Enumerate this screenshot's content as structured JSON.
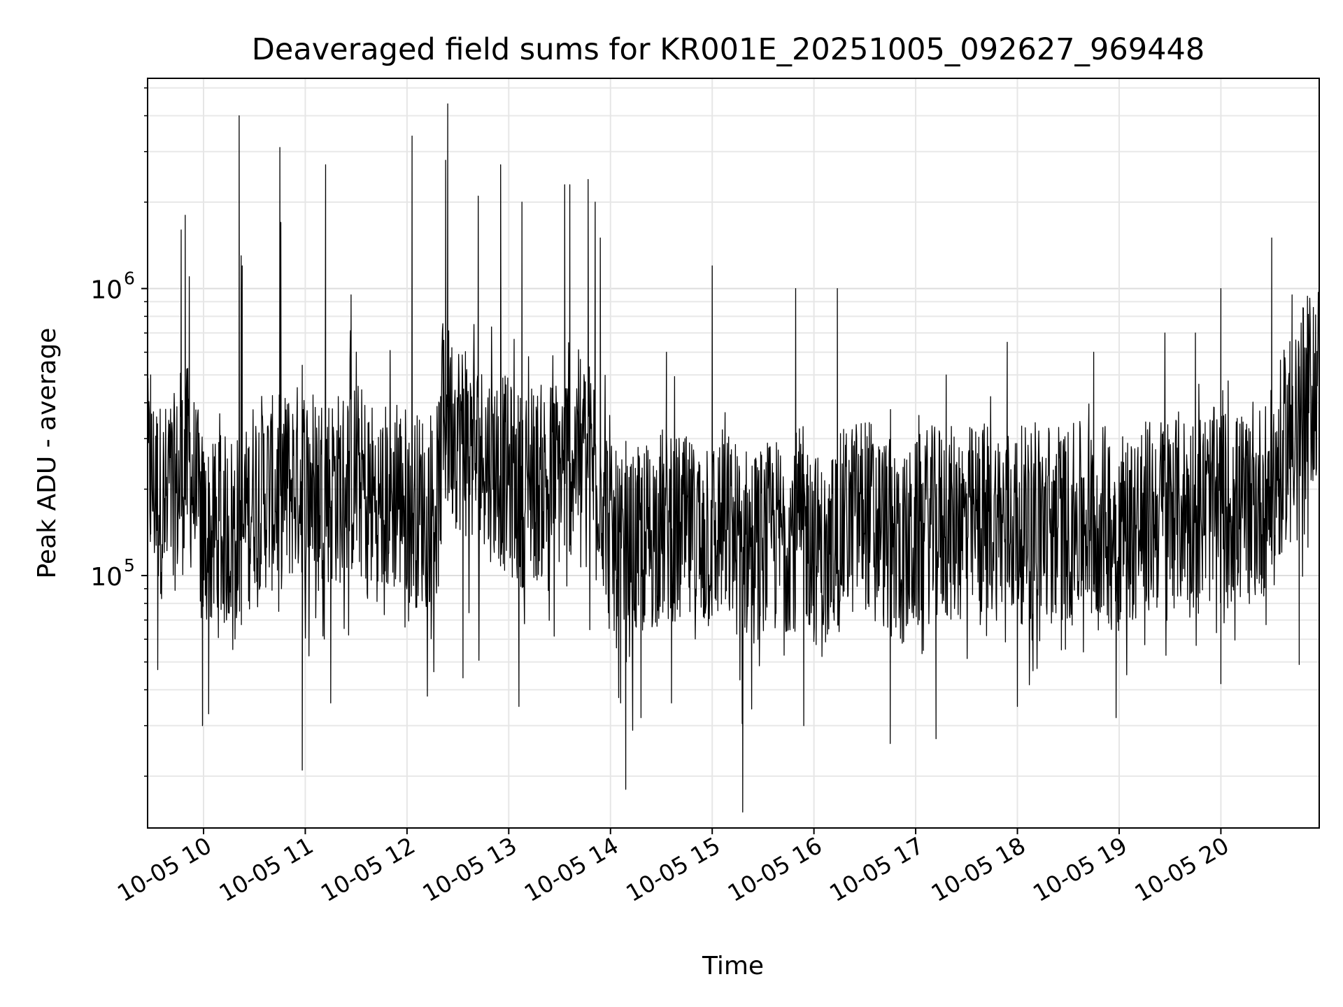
{
  "chart_data": {
    "type": "line",
    "title": "Deaveraged field sums for KR001E_20251005_092627_969448",
    "xlabel": "Time",
    "ylabel": "Peak ADU - average",
    "x_ticks": [
      "10-05 10",
      "10-05 11",
      "10-05 12",
      "10-05 13",
      "10-05 14",
      "10-05 15",
      "10-05 16",
      "10-05 17",
      "10-05 18",
      "10-05 19",
      "10-05 20"
    ],
    "y_ticks": [
      {
        "base": "10",
        "exp": "5",
        "value": 100000
      },
      {
        "base": "10",
        "exp": "6",
        "value": 1000000
      }
    ],
    "x_range": [
      "2025-10-05 09:27",
      "2025-10-05 20:58"
    ],
    "y_range": [
      13200,
      5400000
    ],
    "yscale": "log",
    "grid": true,
    "line_color": "#000000",
    "series": [
      {
        "x_start": "2025-10-05 09:27",
        "x_end": "2025-10-05 20:58",
        "envelope_hours": [
          9.46,
          9.6,
          9.75,
          9.85,
          10.0,
          10.1,
          10.3,
          10.4,
          10.5,
          10.7,
          10.8,
          10.97,
          11.1,
          11.3,
          11.5,
          11.7,
          11.9,
          12.1,
          12.3,
          12.37,
          12.5,
          12.7,
          12.9,
          13.1,
          13.3,
          13.5,
          13.7,
          13.9,
          14.0,
          14.15,
          14.3,
          14.5,
          14.7,
          14.9,
          15.1,
          15.3,
          15.5,
          15.7,
          15.9,
          16.1,
          16.3,
          16.5,
          16.7,
          16.9,
          17.1,
          17.3,
          17.5,
          17.7,
          17.9,
          18.1,
          18.3,
          18.5,
          18.7,
          18.9,
          19.1,
          19.3,
          19.5,
          19.7,
          19.9,
          20.1,
          20.3,
          20.5,
          20.7,
          20.97
        ],
        "envelope_typical": [
          220000,
          180000,
          200000,
          250000,
          140000,
          130000,
          150000,
          140000,
          200000,
          190000,
          200000,
          220000,
          210000,
          200000,
          220000,
          180000,
          190000,
          170000,
          180000,
          350000,
          320000,
          260000,
          240000,
          200000,
          210000,
          230000,
          280000,
          230000,
          130000,
          110000,
          130000,
          150000,
          140000,
          130000,
          150000,
          130000,
          130000,
          140000,
          150000,
          110000,
          150000,
          170000,
          140000,
          120000,
          150000,
          150000,
          150000,
          160000,
          150000,
          150000,
          160000,
          150000,
          160000,
          150000,
          150000,
          160000,
          170000,
          170000,
          175000,
          170000,
          170000,
          200000,
          350000,
          500000
        ],
        "envelope_high": [
          500000,
          500000,
          1800000,
          400000,
          300000,
          350000,
          4000000,
          450000,
          3100000,
          500000,
          450000,
          2700000,
          900000,
          1000000,
          850000,
          750000,
          3400000,
          800000,
          1400000,
          4400000,
          1600000,
          1900000,
          2700000,
          1700000,
          1000000,
          2300000,
          2400000,
          1600000,
          500000,
          400000,
          500000,
          500000,
          500000,
          1200000,
          500000,
          500000,
          450000,
          500000,
          1000000,
          450000,
          550000,
          450000,
          500000,
          450000,
          450000,
          500000,
          480000,
          450000,
          450000,
          500000,
          430000,
          420000,
          420000,
          500000,
          420000,
          500000,
          500000,
          530000,
          500000,
          500000,
          480000,
          500000,
          900000,
          800000
        ],
        "envelope_low": [
          120000,
          100000,
          80000,
          70000,
          40000,
          60000,
          50000,
          55000,
          60000,
          55000,
          70000,
          32000,
          55000,
          60000,
          60000,
          50000,
          45000,
          37000,
          40000,
          70000,
          60000,
          50000,
          45000,
          40000,
          50000,
          60000,
          60000,
          55000,
          30000,
          20000,
          40000,
          50000,
          35000,
          45000,
          50000,
          16000,
          50000,
          50000,
          40000,
          55000,
          50000,
          55000,
          35000,
          40000,
          45000,
          45000,
          40000,
          45000,
          45000,
          40000,
          45000,
          50000,
          45000,
          45000,
          45000,
          50000,
          50000,
          60000,
          50000,
          60000,
          50000,
          60000,
          80000,
          100000
        ],
        "notable_peaks": [
          [
            9.48,
            500000
          ],
          [
            9.78,
            1600000
          ],
          [
            9.82,
            1800000
          ],
          [
            9.86,
            1100000
          ],
          [
            10.35,
            4000000
          ],
          [
            10.37,
            1300000
          ],
          [
            10.38,
            1200000
          ],
          [
            10.75,
            3100000
          ],
          [
            10.76,
            1700000
          ],
          [
            11.2,
            2700000
          ],
          [
            11.45,
            950000
          ],
          [
            12.05,
            3400000
          ],
          [
            12.38,
            2800000
          ],
          [
            12.4,
            4400000
          ],
          [
            12.7,
            2100000
          ],
          [
            12.92,
            2700000
          ],
          [
            13.13,
            2000000
          ],
          [
            13.55,
            2300000
          ],
          [
            13.6,
            2300000
          ],
          [
            13.78,
            2400000
          ],
          [
            13.85,
            2000000
          ],
          [
            13.9,
            1500000
          ],
          [
            14.55,
            600000
          ],
          [
            15.0,
            1200000
          ],
          [
            15.82,
            1000000
          ],
          [
            16.23,
            1000000
          ],
          [
            17.3,
            500000
          ],
          [
            17.9,
            650000
          ],
          [
            18.75,
            600000
          ],
          [
            19.45,
            700000
          ],
          [
            19.75,
            700000
          ],
          [
            20.0,
            1000000
          ],
          [
            20.5,
            1500000
          ],
          [
            20.7,
            950000
          ]
        ],
        "notable_dips": [
          [
            9.55,
            47000
          ],
          [
            9.99,
            30000
          ],
          [
            10.05,
            33000
          ],
          [
            10.97,
            21000
          ],
          [
            11.25,
            36000
          ],
          [
            12.2,
            38000
          ],
          [
            12.55,
            44000
          ],
          [
            13.1,
            35000
          ],
          [
            14.1,
            36000
          ],
          [
            14.15,
            18000
          ],
          [
            14.3,
            32000
          ],
          [
            14.6,
            36000
          ],
          [
            15.3,
            15000
          ],
          [
            15.9,
            30000
          ],
          [
            16.75,
            26000
          ],
          [
            17.2,
            27000
          ],
          [
            18.0,
            35000
          ],
          [
            18.97,
            32000
          ],
          [
            20.0,
            42000
          ],
          [
            20.77,
            49000
          ]
        ]
      }
    ]
  }
}
